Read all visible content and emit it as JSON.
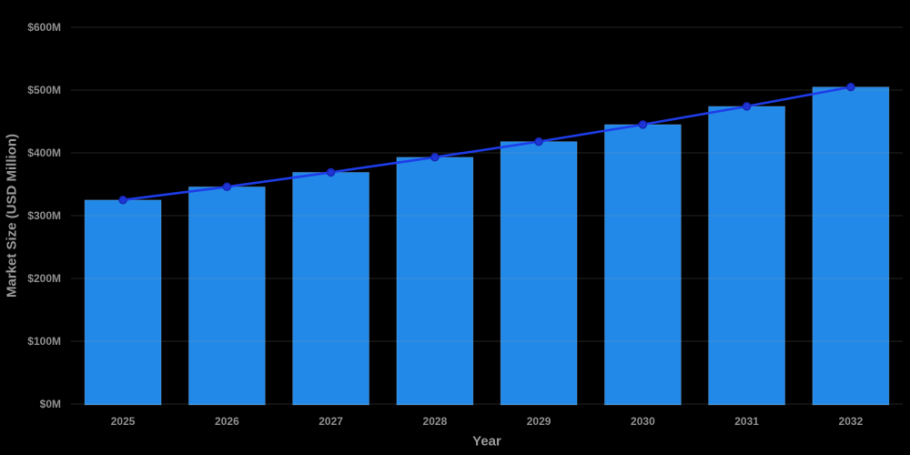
{
  "chart_data": {
    "type": "bar",
    "title": "",
    "xlabel": "Year",
    "ylabel": "Market Size (USD Million)",
    "categories": [
      "2025",
      "2026",
      "2027",
      "2028",
      "2029",
      "2030",
      "2031",
      "2032"
    ],
    "series": [
      {
        "name": "market-size-bars",
        "type": "bar",
        "values": [
          325,
          346,
          369,
          393,
          418,
          445,
          474,
          505
        ]
      },
      {
        "name": "market-size-trend-line",
        "type": "line",
        "values": [
          325,
          346,
          369,
          393,
          418,
          445,
          474,
          505
        ]
      }
    ],
    "ylim": [
      0,
      600
    ],
    "ytick_values": [
      0,
      100,
      200,
      300,
      400,
      500,
      600
    ],
    "ytick_labels": [
      "$0M",
      "$100M",
      "$200M",
      "$300M",
      "$400M",
      "$500M",
      "$600M"
    ],
    "grid": true,
    "legend_position": "none"
  },
  "colors": {
    "background": "#000000",
    "bar_fill": "#2289e8",
    "bar_border": "rgba(255,255,255,0.16)",
    "line": "#1e3ce8",
    "marker_fill": "#1e35d6",
    "marker_border": "#1726b5",
    "gridline": "rgba(160,160,160,0.22)",
    "tick_text": "#909090",
    "axis_title_text": "#9b9b9b"
  }
}
